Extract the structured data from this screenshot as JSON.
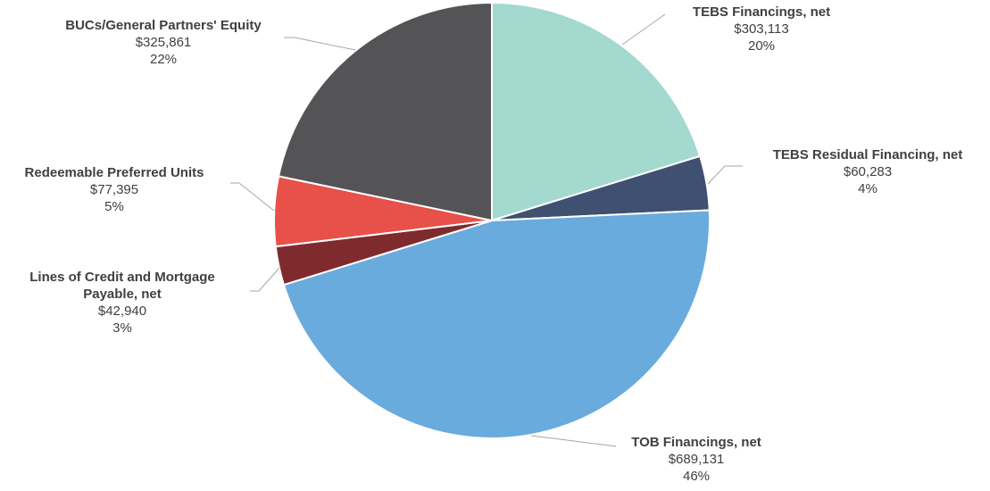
{
  "chart_data": {
    "type": "pie",
    "categories": [
      "TEBS Financings, net",
      "TEBS Residual Financing, net",
      "TOB Financings, net",
      "Lines of Credit and Mortgage Payable, net",
      "Redeemable Preferred Units",
      "BUCs/General Partners' Equity"
    ],
    "values": [
      303113,
      60283,
      689131,
      42940,
      77395,
      325861
    ],
    "value_labels": [
      "$303,113",
      "$60,283",
      "$689,131",
      "$42,940",
      "$77,395",
      "$325,861"
    ],
    "percentages": [
      20,
      4,
      46,
      3,
      5,
      22
    ],
    "percentage_labels": [
      "20%",
      "4%",
      "46%",
      "3%",
      "5%",
      "22%"
    ],
    "colors": [
      "#a3d9cf",
      "#3f5070",
      "#6aabdd",
      "#7f2b2e",
      "#e8504a",
      "#545456"
    ]
  }
}
